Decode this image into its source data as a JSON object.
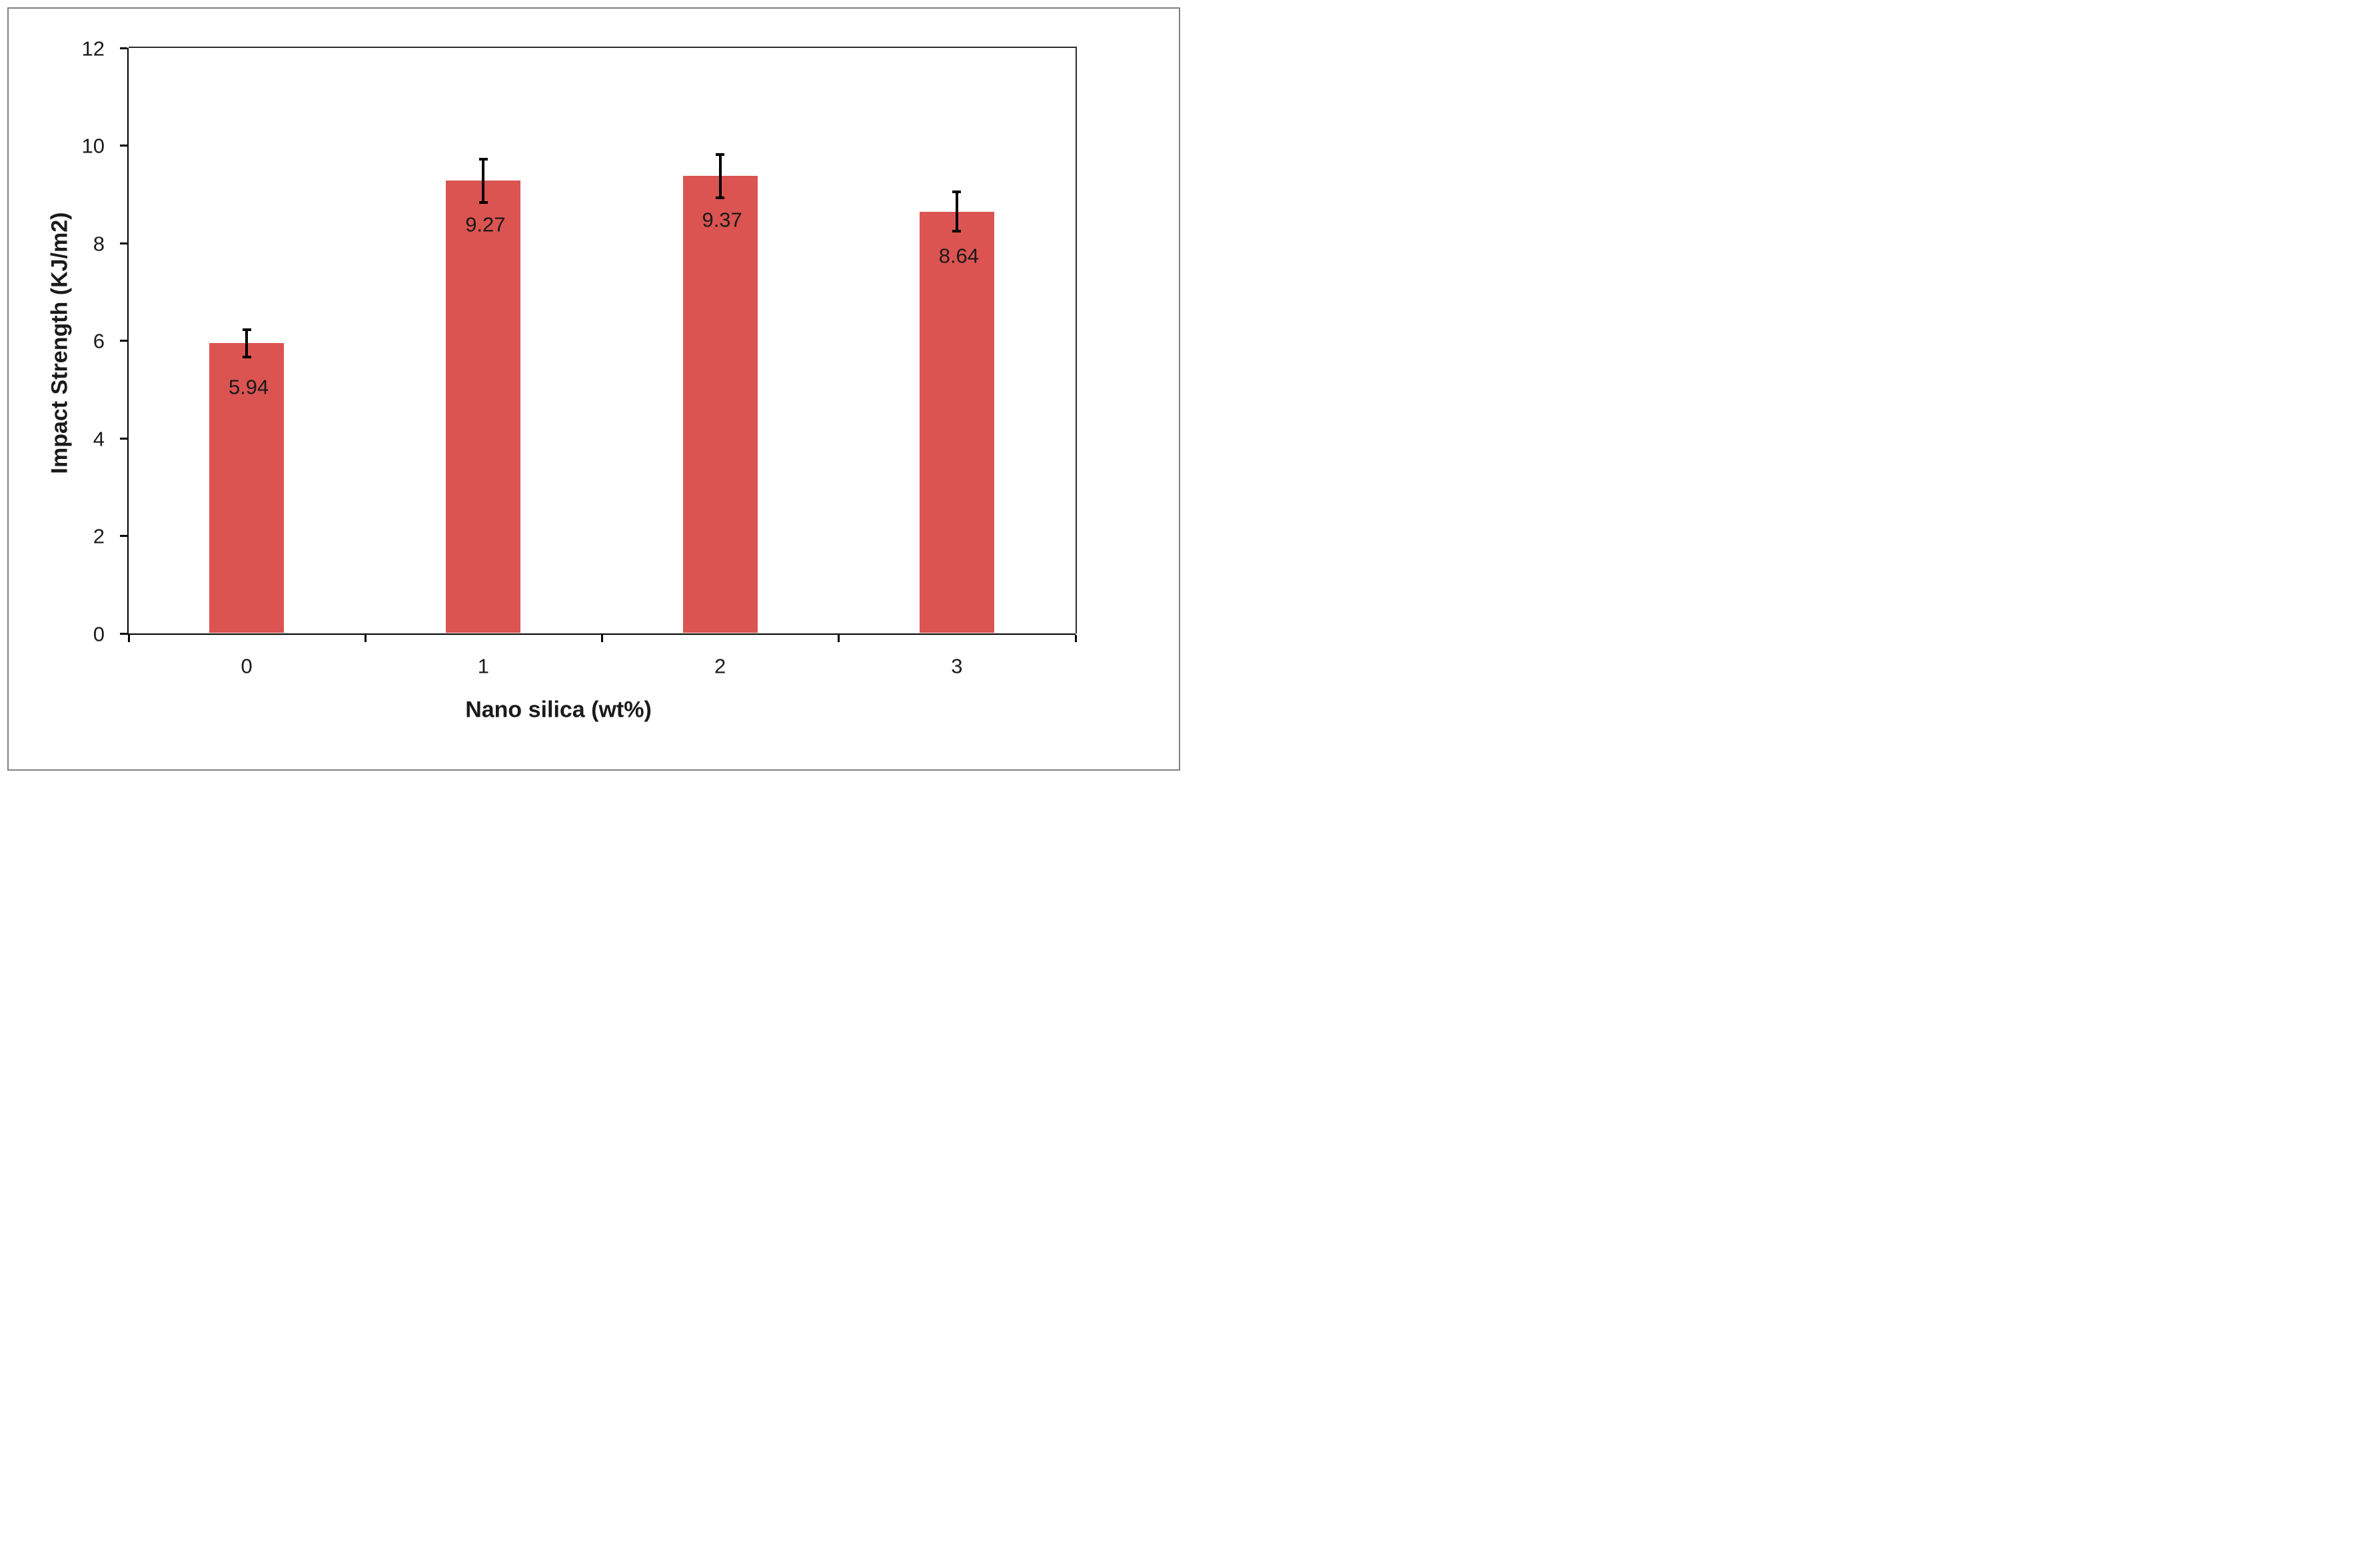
{
  "chart_data": {
    "type": "bar",
    "title": "",
    "categories": [
      "0",
      "1",
      "2",
      "3"
    ],
    "values": [
      5.94,
      9.27,
      9.37,
      8.64
    ],
    "errors": [
      0.31,
      0.47,
      0.47,
      0.43
    ],
    "data_labels": [
      "5.94",
      "9.27",
      "9.37",
      "8.64"
    ],
    "xlabel": "Nano silica (wt%)",
    "ylabel": "Impact Strength (KJ/m2)",
    "ylim": [
      0,
      12
    ],
    "yticks": [
      0,
      2,
      4,
      6,
      8,
      10,
      12
    ],
    "bar_color": "#db5451",
    "error_bar_color": "#000000",
    "axis_color": "#000000",
    "frame_border_color": "#808080",
    "background_color": "#ffffff",
    "grid": "off",
    "legend": "none",
    "data_label_position": "inside-end"
  }
}
